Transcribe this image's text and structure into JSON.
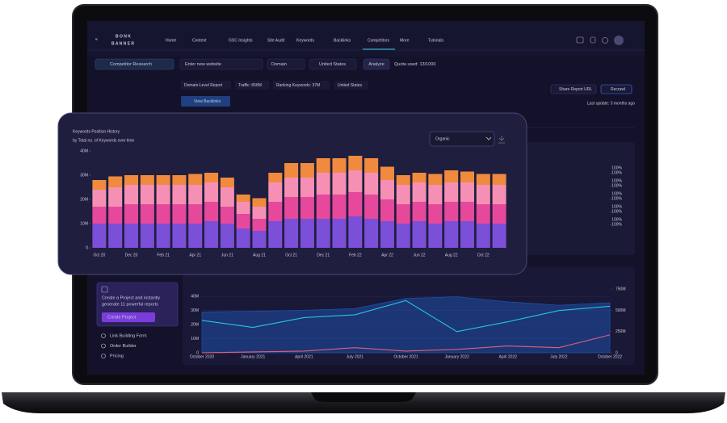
{
  "nav": {
    "logo_top": "B O N K",
    "logo_bottom": "B A N N E R",
    "items": [
      "Home",
      "Content",
      "GSC Insights",
      "Site Audit",
      "Keywords",
      "Backlinks",
      "Competitors",
      "More",
      "Tutorials"
    ]
  },
  "toolbar": {
    "tool": "Competitor Research",
    "input_placeholder": "Enter new website",
    "mode": "Domain",
    "country": "United States",
    "button": "Analyze",
    "quota": "Quota used: 13/1000"
  },
  "report": {
    "chips": [
      "Domain-Level Report",
      "Traffic: 658M",
      "Ranking Keywords: 37M",
      "United States"
    ],
    "share": "Share Report URL",
    "recrawl": "Recrawl",
    "view_backlinks": "View Backlinks",
    "last_update": "Last update: 3 months ago"
  },
  "sidebar": {
    "promo": [
      "Create a Project and instantly",
      "generate 11 powerful reports"
    ],
    "cta": "Create Project",
    "links": [
      "Link Building Form",
      "Order Builder",
      "Pricing"
    ]
  },
  "summary_panel": {
    "changes": [
      "100%",
      "-100%",
      "100%",
      "-100%",
      "100%",
      "-100%",
      "100%",
      "-100%",
      "100%",
      "-100%"
    ]
  },
  "keywords_card": {
    "dropdown": "Organic"
  },
  "chart_data": [
    {
      "type": "bar",
      "stacked": true,
      "title": "Keywords Position History",
      "subtitle": "by Total no. of Keywords over time",
      "categories": [
        "Oct 20",
        null,
        "Dec 20",
        null,
        "Feb 21",
        null,
        "Apr 21",
        null,
        "Jun 21",
        null,
        "Aug 21",
        null,
        "Oct 21",
        null,
        "Dec 21",
        null,
        "Feb 22",
        null,
        "Apr 22",
        null,
        "Jun 22",
        null,
        "Aug 22",
        null,
        "Oct 22",
        null
      ],
      "series": [
        {
          "color": "#7b4fd8",
          "values": [
            10,
            10,
            10,
            10,
            10,
            10,
            10,
            11,
            10,
            8,
            7,
            11,
            12,
            12,
            12,
            12,
            13,
            12,
            11,
            10,
            11,
            10,
            11,
            11,
            10,
            10
          ]
        },
        {
          "color": "#e6489c",
          "values": [
            7,
            7,
            8,
            8,
            8,
            8,
            8,
            8,
            7,
            6,
            5,
            8,
            9,
            9,
            10,
            10,
            10,
            10,
            9,
            8,
            8,
            8,
            8,
            8,
            8,
            8
          ]
        },
        {
          "color": "#f590b4",
          "values": [
            7,
            8,
            8,
            8,
            8,
            8,
            8,
            8,
            8,
            5,
            5,
            8,
            8,
            8,
            9,
            9,
            9,
            9,
            8,
            8,
            8,
            8,
            8,
            8,
            8,
            8
          ]
        },
        {
          "color": "#f08a3e",
          "values": [
            4,
            4.5,
            4,
            4,
            4,
            4,
            4.5,
            4,
            4,
            3,
            3.5,
            4,
            6,
            6,
            6,
            6,
            6,
            6,
            5.5,
            4,
            4,
            4.5,
            5,
            4.5,
            4.5,
            4.5
          ]
        }
      ],
      "ylim": [
        0,
        40
      ],
      "yticks": [
        0,
        {
          "value": 10,
          "label": "10M"
        },
        {
          "value": 20,
          "label": "20M"
        },
        {
          "value": 30,
          "label": "30M"
        },
        {
          "value": 40,
          "label": "40M"
        }
      ],
      "grid": false
    },
    {
      "type": "line",
      "categories": [
        "October 2020",
        "January 2021",
        "April 2021",
        "July 2021",
        "October 2021",
        "January 2022",
        "April 2022",
        "July 2022",
        "October 2022"
      ],
      "series": [
        {
          "color": "#1f4fa8",
          "area": true,
          "axis": "y2",
          "values": [
            480,
            490,
            500,
            520,
            640,
            660,
            600,
            560,
            590
          ]
        },
        {
          "color": "#25c6d9",
          "axis": "y",
          "values": [
            23,
            18,
            25,
            27,
            37,
            15,
            22,
            30,
            33
          ]
        },
        {
          "color": "#e0607a",
          "axis": "y2",
          "values": [
            0,
            10,
            20,
            60,
            20,
            40,
            80,
            60,
            210
          ]
        }
      ],
      "ylim": [
        0,
        47
      ],
      "yticks": [
        0,
        {
          "value": 10,
          "label": "10M"
        },
        {
          "value": 20,
          "label": "20M"
        },
        {
          "value": 30,
          "label": "30M"
        },
        {
          "value": 40,
          "label": "40M"
        }
      ],
      "y2lim": [
        0,
        780
      ],
      "y2ticks": [
        0,
        {
          "value": 250,
          "label": "250M"
        },
        {
          "value": 500,
          "label": "500M"
        },
        {
          "value": 750,
          "label": "750M"
        }
      ],
      "grid": true
    }
  ]
}
